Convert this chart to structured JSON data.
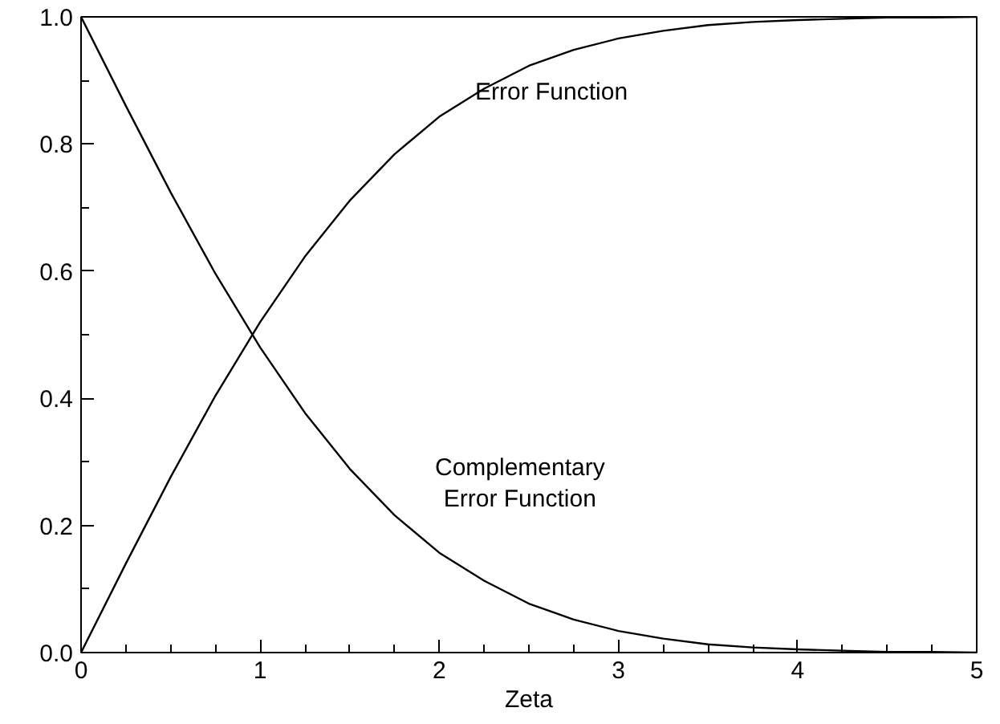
{
  "chart_data": {
    "type": "line",
    "xlabel": "Zeta",
    "x": [
      0,
      0.25,
      0.5,
      0.75,
      1,
      1.25,
      1.5,
      1.75,
      2,
      2.25,
      2.5,
      2.75,
      3,
      3.25,
      3.5,
      3.75,
      4,
      4.25,
      4.5,
      4.75,
      5
    ],
    "series": [
      {
        "name": "Error Function",
        "color": "#000000",
        "values": [
          0,
          0.14,
          0.276,
          0.404,
          0.52,
          0.623,
          0.711,
          0.784,
          0.843,
          0.887,
          0.923,
          0.948,
          0.966,
          0.978,
          0.987,
          0.992,
          0.995,
          0.997,
          0.999,
          0.999,
          1.0
        ]
      },
      {
        "name": "Complementary\nError Function",
        "color": "#000000",
        "values": [
          1.0,
          0.86,
          0.724,
          0.596,
          0.48,
          0.377,
          0.289,
          0.216,
          0.157,
          0.113,
          0.077,
          0.052,
          0.034,
          0.022,
          0.013,
          0.008,
          0.005,
          0.003,
          0.001,
          0.001,
          0
        ]
      }
    ],
    "xlim": [
      0,
      5
    ],
    "ylim": [
      0,
      1
    ],
    "xticks": [
      0,
      1,
      2,
      3,
      4,
      5
    ],
    "yticks": [
      {
        "value": 0,
        "label": "0.0"
      },
      {
        "value": 0.2,
        "label": "0.2"
      },
      {
        "value": 0.4,
        "label": "0.4"
      },
      {
        "value": 0.6,
        "label": "0.6"
      },
      {
        "value": 0.8,
        "label": "0.8"
      },
      {
        "value": 1,
        "label": "1.0"
      }
    ],
    "grid": false,
    "marker": "none",
    "line_style": "solid"
  }
}
